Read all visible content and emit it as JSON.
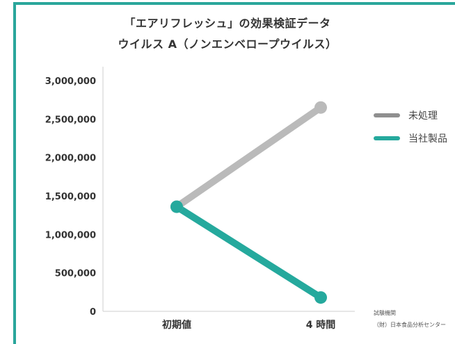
{
  "chart_data": {
    "type": "line",
    "title": "「エアリフレッシュ」の効果検証データ",
    "subtitle": "ウイルス A（ノンエンベロープウイルス）",
    "categories": [
      "初期値",
      "4 時間"
    ],
    "yticks": [
      "0",
      "500,000",
      "1,000,000",
      "1,500,000",
      "2,000,000",
      "2,500,000",
      "3,000,000"
    ],
    "ylim": [
      0,
      3000000
    ],
    "series": [
      {
        "name": "未処理",
        "color": "#bababa",
        "values": [
          1360000,
          2650000
        ]
      },
      {
        "name": "当社製品",
        "color": "#25a99d",
        "values": [
          1360000,
          180000
        ]
      }
    ],
    "legend_position": "right",
    "grid": false
  },
  "notes": {
    "line1": "試験機関",
    "line2": "（財）日本食品分析センター"
  },
  "legend_colors": {
    "unprocessed": "#8f8f8f",
    "product": "#25a99d"
  }
}
